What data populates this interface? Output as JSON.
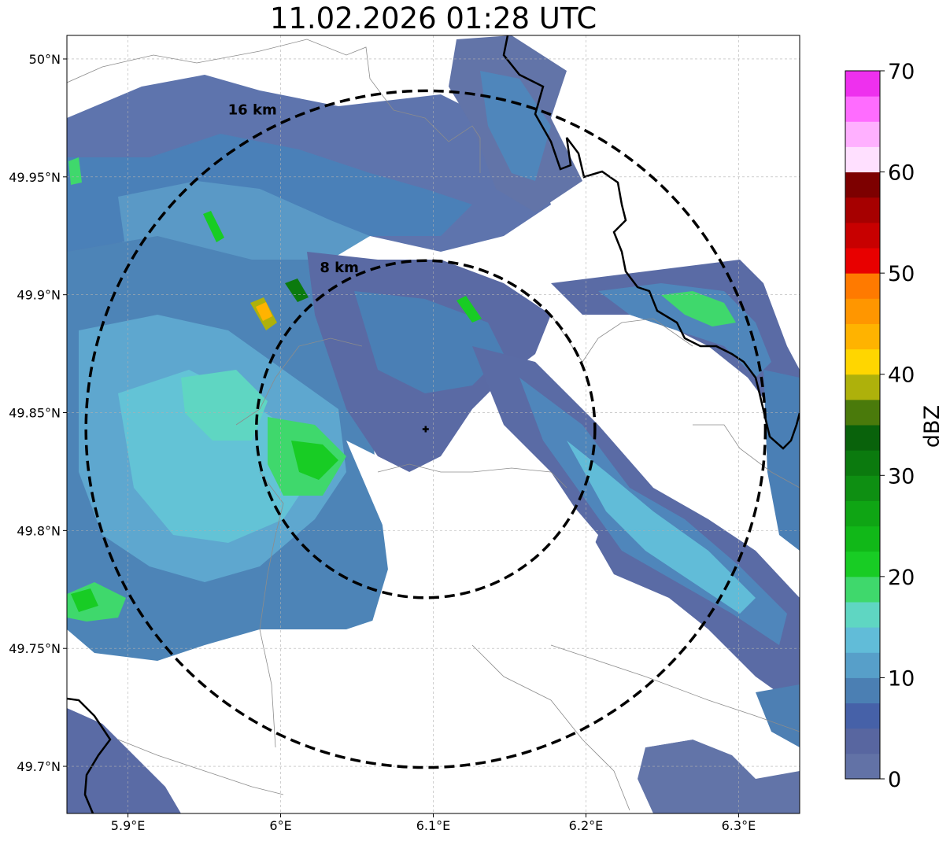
{
  "title": "11.02.2026 01:28 UTC",
  "map": {
    "lon_range": [
      5.86,
      6.34
    ],
    "lat_range": [
      49.68,
      50.01
    ],
    "x_ticks": [
      {
        "value": 5.9,
        "label": "5.9°E"
      },
      {
        "value": 6.0,
        "label": "6°E"
      },
      {
        "value": 6.1,
        "label": "6.1°E"
      },
      {
        "value": 6.2,
        "label": "6.2°E"
      },
      {
        "value": 6.3,
        "label": "6.3°E"
      }
    ],
    "y_ticks": [
      {
        "value": 50.0,
        "label": "50°N"
      },
      {
        "value": 49.95,
        "label": "49.95°N"
      },
      {
        "value": 49.9,
        "label": "49.9°N"
      },
      {
        "value": 49.85,
        "label": "49.85°N"
      },
      {
        "value": 49.8,
        "label": "49.8°N"
      },
      {
        "value": 49.75,
        "label": "49.75°N"
      },
      {
        "value": 49.7,
        "label": "49.7°N"
      }
    ],
    "radar_site": {
      "lon": 6.095,
      "lat": 49.843
    },
    "range_rings": [
      {
        "label": "8 km",
        "radius_lat_deg": 0.0715
      },
      {
        "label": "16 km",
        "radius_lat_deg": 0.1435
      }
    ]
  },
  "colorbar": {
    "label": "dBZ",
    "min": 0,
    "max": 70,
    "tick_labels": [
      "0",
      "10",
      "20",
      "30",
      "40",
      "50",
      "60",
      "70"
    ],
    "colors": [
      "#6272a6",
      "#5866a0",
      "#4661a8",
      "#4b7fb3",
      "#579fc9",
      "#61bcd8",
      "#5fd6c2",
      "#3fd86c",
      "#18cc24",
      "#11b818",
      "#0fa514",
      "#0e8f12",
      "#0b7a0e",
      "#09620b",
      "#4a7a0b",
      "#aeb10b",
      "#ffd600",
      "#ffb300",
      "#ff9600",
      "#ff7a00",
      "#e80000",
      "#c80000",
      "#a60000",
      "#7d0000",
      "#ffe0ff",
      "#ffb0ff",
      "#ff6cff",
      "#ee30ee"
    ]
  }
}
